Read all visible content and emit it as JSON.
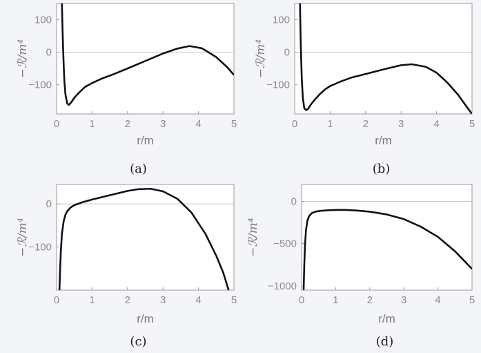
{
  "chart_data": [
    {
      "type": "line",
      "panel": "a",
      "caption": "(a)",
      "xlabel": "r/m",
      "ylabel": "−ℛ/m⁴",
      "xlim": [
        0,
        5
      ],
      "ylim": [
        -190,
        150
      ],
      "xticks": [
        0,
        1,
        2,
        3,
        4,
        5
      ],
      "yticks": [
        100,
        0,
        -100
      ],
      "x": [
        0.15,
        0.17,
        0.2,
        0.22,
        0.25,
        0.3,
        0.35,
        0.42,
        0.5,
        0.6,
        0.8,
        1.0,
        1.3,
        1.6,
        2.0,
        2.5,
        3.0,
        3.4,
        3.75,
        4.1,
        4.5,
        4.8,
        5.0
      ],
      "y": [
        150,
        60,
        -40,
        -90,
        -130,
        -158,
        -162,
        -153,
        -140,
        -128,
        -107,
        -95,
        -80,
        -68,
        -50,
        -27,
        -4,
        11,
        19,
        12,
        -15,
        -45,
        -70
      ]
    },
    {
      "type": "line",
      "panel": "b",
      "caption": "(b)",
      "xlabel": "r/m",
      "ylabel": "−ℛ/m⁴",
      "xlim": [
        0,
        5
      ],
      "ylim": [
        -190,
        150
      ],
      "xticks": [
        0,
        1,
        2,
        3,
        4,
        5
      ],
      "yticks": [
        100,
        0,
        -100
      ],
      "x": [
        0.15,
        0.17,
        0.2,
        0.23,
        0.27,
        0.32,
        0.38,
        0.45,
        0.55,
        0.7,
        0.85,
        1.0,
        1.3,
        1.6,
        2.0,
        2.5,
        3.0,
        3.3,
        3.7,
        4.0,
        4.3,
        4.6,
        4.85,
        5.0
      ],
      "y": [
        150,
        30,
        -80,
        -140,
        -172,
        -178,
        -174,
        -162,
        -148,
        -130,
        -115,
        -104,
        -90,
        -78,
        -67,
        -53,
        -40,
        -37,
        -45,
        -63,
        -93,
        -130,
        -168,
        -190
      ]
    },
    {
      "type": "line",
      "panel": "c",
      "caption": "(c)",
      "xlabel": "r/m",
      "ylabel": "−ℛ/m⁴",
      "xlim": [
        0,
        5
      ],
      "ylim": [
        -200,
        45
      ],
      "xticks": [
        0,
        1,
        2,
        3,
        4,
        5
      ],
      "yticks": [
        0,
        -100
      ],
      "x": [
        0.08,
        0.1,
        0.12,
        0.15,
        0.2,
        0.25,
        0.3,
        0.4,
        0.5,
        0.7,
        1.0,
        1.5,
        2.0,
        2.3,
        2.65,
        3.0,
        3.4,
        3.8,
        4.2,
        4.5,
        4.7,
        4.85
      ],
      "y": [
        -200,
        -150,
        -110,
        -70,
        -40,
        -25,
        -17,
        -8,
        -3,
        3,
        10,
        20,
        30,
        34,
        35,
        29,
        12,
        -20,
        -70,
        -120,
        -160,
        -200
      ]
    },
    {
      "type": "line",
      "panel": "d",
      "caption": "(d)",
      "xlabel": "r/m",
      "ylabel": "−ℛ/m⁴",
      "xlim": [
        0,
        5
      ],
      "ylim": [
        -1050,
        200
      ],
      "xticks": [
        0,
        1,
        2,
        3,
        4,
        5
      ],
      "yticks": [
        0,
        -500,
        -1000
      ],
      "x": [
        0.06,
        0.08,
        0.1,
        0.13,
        0.17,
        0.22,
        0.3,
        0.4,
        0.55,
        0.8,
        1.0,
        1.25,
        1.6,
        2.0,
        2.5,
        3.0,
        3.5,
        4.0,
        4.5,
        5.0
      ],
      "y": [
        -1050,
        -750,
        -520,
        -340,
        -230,
        -175,
        -140,
        -122,
        -112,
        -105,
        -102,
        -101,
        -108,
        -122,
        -155,
        -210,
        -300,
        -420,
        -590,
        -800
      ]
    }
  ]
}
